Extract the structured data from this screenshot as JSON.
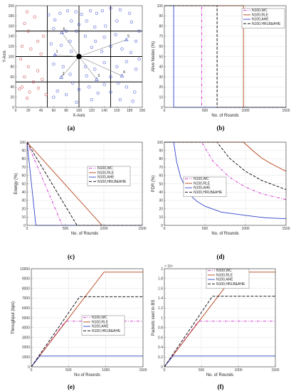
{
  "colors": {
    "WC": "#cc22cc",
    "RLE": "#b5421a",
    "AHE": "#3344cc",
    "HRLBAHE": "#000000",
    "grid": "#e3e3e3",
    "frame": "#333333",
    "network_grid": "#000000",
    "link": "#888888",
    "node_blue": "#3344cc",
    "node_red": "#c8383c"
  },
  "legend_labels": [
    "N100,WC",
    "N100,RLE",
    "N100,AHE",
    "N100,HRLB&AHE"
  ],
  "chart_data": [
    {
      "id": "a",
      "panel_label": "(a)",
      "type": "scatter",
      "xlabel": "X-Axis",
      "ylabel": "Y-Axis",
      "xlim": [
        0,
        200
      ],
      "ylim": [
        0,
        200
      ],
      "xticks": [
        0,
        20,
        40,
        60,
        80,
        100,
        120,
        140,
        160,
        180,
        200
      ],
      "yticks": [
        0,
        20,
        40,
        60,
        80,
        100,
        120,
        140,
        160,
        180,
        200
      ],
      "grid_lines": [
        50,
        100,
        150
      ],
      "base_station": [
        100,
        100
      ],
      "cluster_heads": [
        {
          "label": "1",
          "x": 62,
          "y": 103
        },
        {
          "label": "2",
          "x": 72,
          "y": 59
        },
        {
          "label": "3",
          "x": 128,
          "y": 55
        },
        {
          "label": "4",
          "x": 168,
          "y": 62
        },
        {
          "label": "5",
          "x": 175,
          "y": 133
        },
        {
          "label": "6",
          "x": 73,
          "y": 147
        }
      ],
      "blue_nodes": [
        [
          70,
          185
        ],
        [
          82,
          190
        ],
        [
          95,
          188
        ],
        [
          104,
          183
        ],
        [
          118,
          190
        ],
        [
          128,
          185
        ],
        [
          137,
          190
        ],
        [
          150,
          195
        ],
        [
          165,
          192
        ],
        [
          180,
          185
        ],
        [
          52,
          182
        ],
        [
          62,
          172
        ],
        [
          88,
          170
        ],
        [
          100,
          163
        ],
        [
          112,
          170
        ],
        [
          125,
          158
        ],
        [
          142,
          160
        ],
        [
          160,
          170
        ],
        [
          183,
          168
        ],
        [
          195,
          150
        ],
        [
          60,
          155
        ],
        [
          80,
          150
        ],
        [
          96,
          150
        ],
        [
          110,
          140
        ],
        [
          126,
          130
        ],
        [
          140,
          138
        ],
        [
          158,
          143
        ],
        [
          190,
          130
        ],
        [
          168,
          115
        ],
        [
          182,
          108
        ],
        [
          195,
          95
        ],
        [
          150,
          120
        ],
        [
          136,
          110
        ],
        [
          120,
          118
        ],
        [
          86,
          130
        ],
        [
          72,
          122
        ],
        [
          56,
          125
        ],
        [
          88,
          110
        ],
        [
          110,
          80
        ],
        [
          125,
          75
        ],
        [
          140,
          88
        ],
        [
          160,
          80
        ],
        [
          175,
          90
        ],
        [
          190,
          75
        ],
        [
          150,
          60
        ],
        [
          162,
          48
        ],
        [
          175,
          40
        ],
        [
          188,
          30
        ],
        [
          140,
          45
        ],
        [
          116,
          40
        ],
        [
          100,
          35
        ],
        [
          90,
          48
        ],
        [
          86,
          65
        ],
        [
          75,
          80
        ],
        [
          60,
          85
        ],
        [
          112,
          62
        ],
        [
          130,
          28
        ],
        [
          150,
          30
        ],
        [
          165,
          15
        ],
        [
          185,
          12
        ],
        [
          120,
          15
        ],
        [
          96,
          10
        ],
        [
          80,
          25
        ],
        [
          66,
          32
        ],
        [
          60,
          20
        ]
      ],
      "red_nodes": [
        [
          18,
          188
        ],
        [
          30,
          178
        ],
        [
          14,
          165
        ],
        [
          20,
          150
        ],
        [
          44,
          140
        ],
        [
          35,
          130
        ],
        [
          10,
          120
        ],
        [
          24,
          115
        ],
        [
          40,
          105
        ],
        [
          8,
          95
        ],
        [
          20,
          80
        ],
        [
          35,
          72
        ],
        [
          14,
          60
        ],
        [
          28,
          50
        ],
        [
          42,
          55
        ],
        [
          10,
          40
        ],
        [
          22,
          30
        ],
        [
          36,
          38
        ],
        [
          48,
          25
        ],
        [
          18,
          18
        ],
        [
          6,
          36
        ]
      ]
    },
    {
      "id": "b",
      "panel_label": "(b)",
      "type": "line",
      "xlabel": "No. of Rounds",
      "ylabel": "Alive Nodes (%)",
      "xlim": [
        0,
        1500
      ],
      "ylim": [
        0,
        100
      ],
      "xticks": [
        0,
        500,
        1000,
        1500
      ],
      "yticks": [
        0,
        10,
        20,
        30,
        40,
        50,
        60,
        70,
        80,
        90,
        100
      ],
      "legend_position": "top-right",
      "series": [
        {
          "name": "N100,WC",
          "key": "WC",
          "dash": "4,2,1,2",
          "x": [
            0,
            460,
            460,
            1500
          ],
          "y": [
            100,
            100,
            0,
            0
          ]
        },
        {
          "name": "N100,RLE",
          "key": "RLE",
          "dash": "",
          "x": [
            0,
            975,
            975,
            1500
          ],
          "y": [
            100,
            100,
            0,
            0
          ]
        },
        {
          "name": "N100,AHE",
          "key": "AHE",
          "dash": "",
          "x": [
            0,
            115,
            115,
            1500
          ],
          "y": [
            100,
            100,
            0,
            0
          ]
        },
        {
          "name": "N100,HRLB&AHE",
          "key": "HRLBAHE",
          "dash": "4,2",
          "x": [
            0,
            650,
            650,
            1500
          ],
          "y": [
            100,
            100,
            0,
            0
          ]
        }
      ]
    },
    {
      "id": "c",
      "panel_label": "(c)",
      "type": "line",
      "xlabel": "No. of Rounds",
      "ylabel": "Energy (%)",
      "xlim": [
        0,
        1500
      ],
      "ylim": [
        0,
        100
      ],
      "xticks": [
        0,
        500,
        1000,
        1500
      ],
      "yticks": [
        0,
        10,
        20,
        30,
        40,
        50,
        60,
        70,
        80,
        90,
        100
      ],
      "legend_position": "top-right",
      "series": [
        {
          "name": "N100,WC",
          "key": "WC",
          "dash": "4,2,1,2",
          "x": [
            0,
            460,
            1500
          ],
          "y": [
            100,
            0,
            0
          ]
        },
        {
          "name": "N100,RLE",
          "key": "RLE",
          "dash": "",
          "x": [
            0,
            975,
            1500
          ],
          "y": [
            100,
            0,
            0
          ]
        },
        {
          "name": "N100,AHE",
          "key": "AHE",
          "dash": "",
          "x": [
            0,
            115,
            1500
          ],
          "y": [
            100,
            0,
            0
          ]
        },
        {
          "name": "N100,HRLB&AHE",
          "key": "HRLBAHE",
          "dash": "4,2",
          "x": [
            0,
            650,
            1500
          ],
          "y": [
            100,
            0,
            0
          ]
        }
      ]
    },
    {
      "id": "d",
      "panel_label": "(d)",
      "type": "line",
      "xlabel": "No. of Rounds",
      "ylabel": "PDR (%)",
      "xlim": [
        0,
        1500
      ],
      "ylim": [
        0,
        100
      ],
      "xticks": [
        0,
        500,
        1000,
        1500
      ],
      "yticks": [
        0,
        10,
        20,
        30,
        40,
        50,
        60,
        70,
        80,
        90,
        100
      ],
      "legend_position": "top-center",
      "series": [
        {
          "name": "N100,WC",
          "key": "WC",
          "dash": "4,2,1,2",
          "x": [
            0,
            460,
            600,
            800,
            1000,
            1200,
            1500
          ],
          "y": [
            100,
            100,
            77,
            58,
            46,
            38,
            31
          ]
        },
        {
          "name": "N100,RLE",
          "key": "RLE",
          "dash": "",
          "x": [
            0,
            975,
            1100,
            1200,
            1300,
            1400,
            1500
          ],
          "y": [
            100,
            100,
            89,
            81,
            75,
            70,
            65
          ]
        },
        {
          "name": "N100,AHE",
          "key": "AHE",
          "dash": "",
          "x": [
            0,
            115,
            150,
            200,
            300,
            400,
            500,
            700,
            1000,
            1250,
            1500
          ],
          "y": [
            100,
            100,
            77,
            58,
            38,
            29,
            23,
            16,
            12,
            9,
            8
          ]
        },
        {
          "name": "N100,HRLB&AHE",
          "key": "HRLBAHE",
          "dash": "4,2",
          "x": [
            0,
            650,
            800,
            1000,
            1200,
            1500
          ],
          "y": [
            100,
            100,
            81,
            65,
            54,
            43
          ]
        }
      ]
    },
    {
      "id": "e",
      "panel_label": "(e)",
      "type": "line",
      "xlabel": "No of Rounds",
      "ylabel": "Throughput (bps)",
      "xlim": [
        0,
        1500
      ],
      "ylim": [
        0,
        10000
      ],
      "xticks": [
        0,
        500,
        1000,
        1500
      ],
      "yticks": [
        0,
        1000,
        2000,
        3000,
        4000,
        5000,
        6000,
        7000,
        8000,
        9000,
        10000
      ],
      "legend_position": "center",
      "series": [
        {
          "name": "N100,WC",
          "key": "WC",
          "dash": "4,2,1,2",
          "x": [
            0,
            460,
            1500
          ],
          "y": [
            0,
            4650,
            4650
          ]
        },
        {
          "name": "N100,RLE",
          "key": "RLE",
          "dash": "",
          "x": [
            0,
            975,
            1500
          ],
          "y": [
            0,
            9650,
            9650
          ]
        },
        {
          "name": "N100,AHE",
          "key": "AHE",
          "dash": "",
          "x": [
            0,
            115,
            1500
          ],
          "y": [
            0,
            1100,
            1100
          ]
        },
        {
          "name": "N100,HRLB&AHE",
          "key": "HRLBAHE",
          "dash": "4,2",
          "x": [
            0,
            650,
            1500
          ],
          "y": [
            0,
            7150,
            7150
          ]
        }
      ]
    },
    {
      "id": "f",
      "panel_label": "(f)",
      "type": "line",
      "xlabel": "No. of Rounds",
      "ylabel": "Packets sent to BS",
      "multiplier": "× 10⁴",
      "xlim": [
        0,
        1500
      ],
      "ylim": [
        0,
        2
      ],
      "xticks": [
        0,
        500,
        1000,
        1500
      ],
      "yticks": [
        0,
        0.2,
        0.4,
        0.6,
        0.8,
        1,
        1.2,
        1.4,
        1.6,
        1.8,
        2
      ],
      "legend_position": "top-center",
      "series": [
        {
          "name": "N100,WC",
          "key": "WC",
          "dash": "4,2,1,2",
          "x": [
            0,
            460,
            1500
          ],
          "y": [
            0,
            0.93,
            0.93
          ]
        },
        {
          "name": "N100,RLE",
          "key": "RLE",
          "dash": "",
          "x": [
            0,
            975,
            1500
          ],
          "y": [
            0,
            1.93,
            1.93
          ]
        },
        {
          "name": "N100,AHE",
          "key": "AHE",
          "dash": "",
          "x": [
            0,
            115,
            1500
          ],
          "y": [
            0,
            0.22,
            0.22
          ]
        },
        {
          "name": "N100,HRLB&AHE",
          "key": "HRLBAHE",
          "dash": "4,2",
          "x": [
            0,
            650,
            1500
          ],
          "y": [
            0,
            1.44,
            1.44
          ]
        }
      ]
    }
  ]
}
